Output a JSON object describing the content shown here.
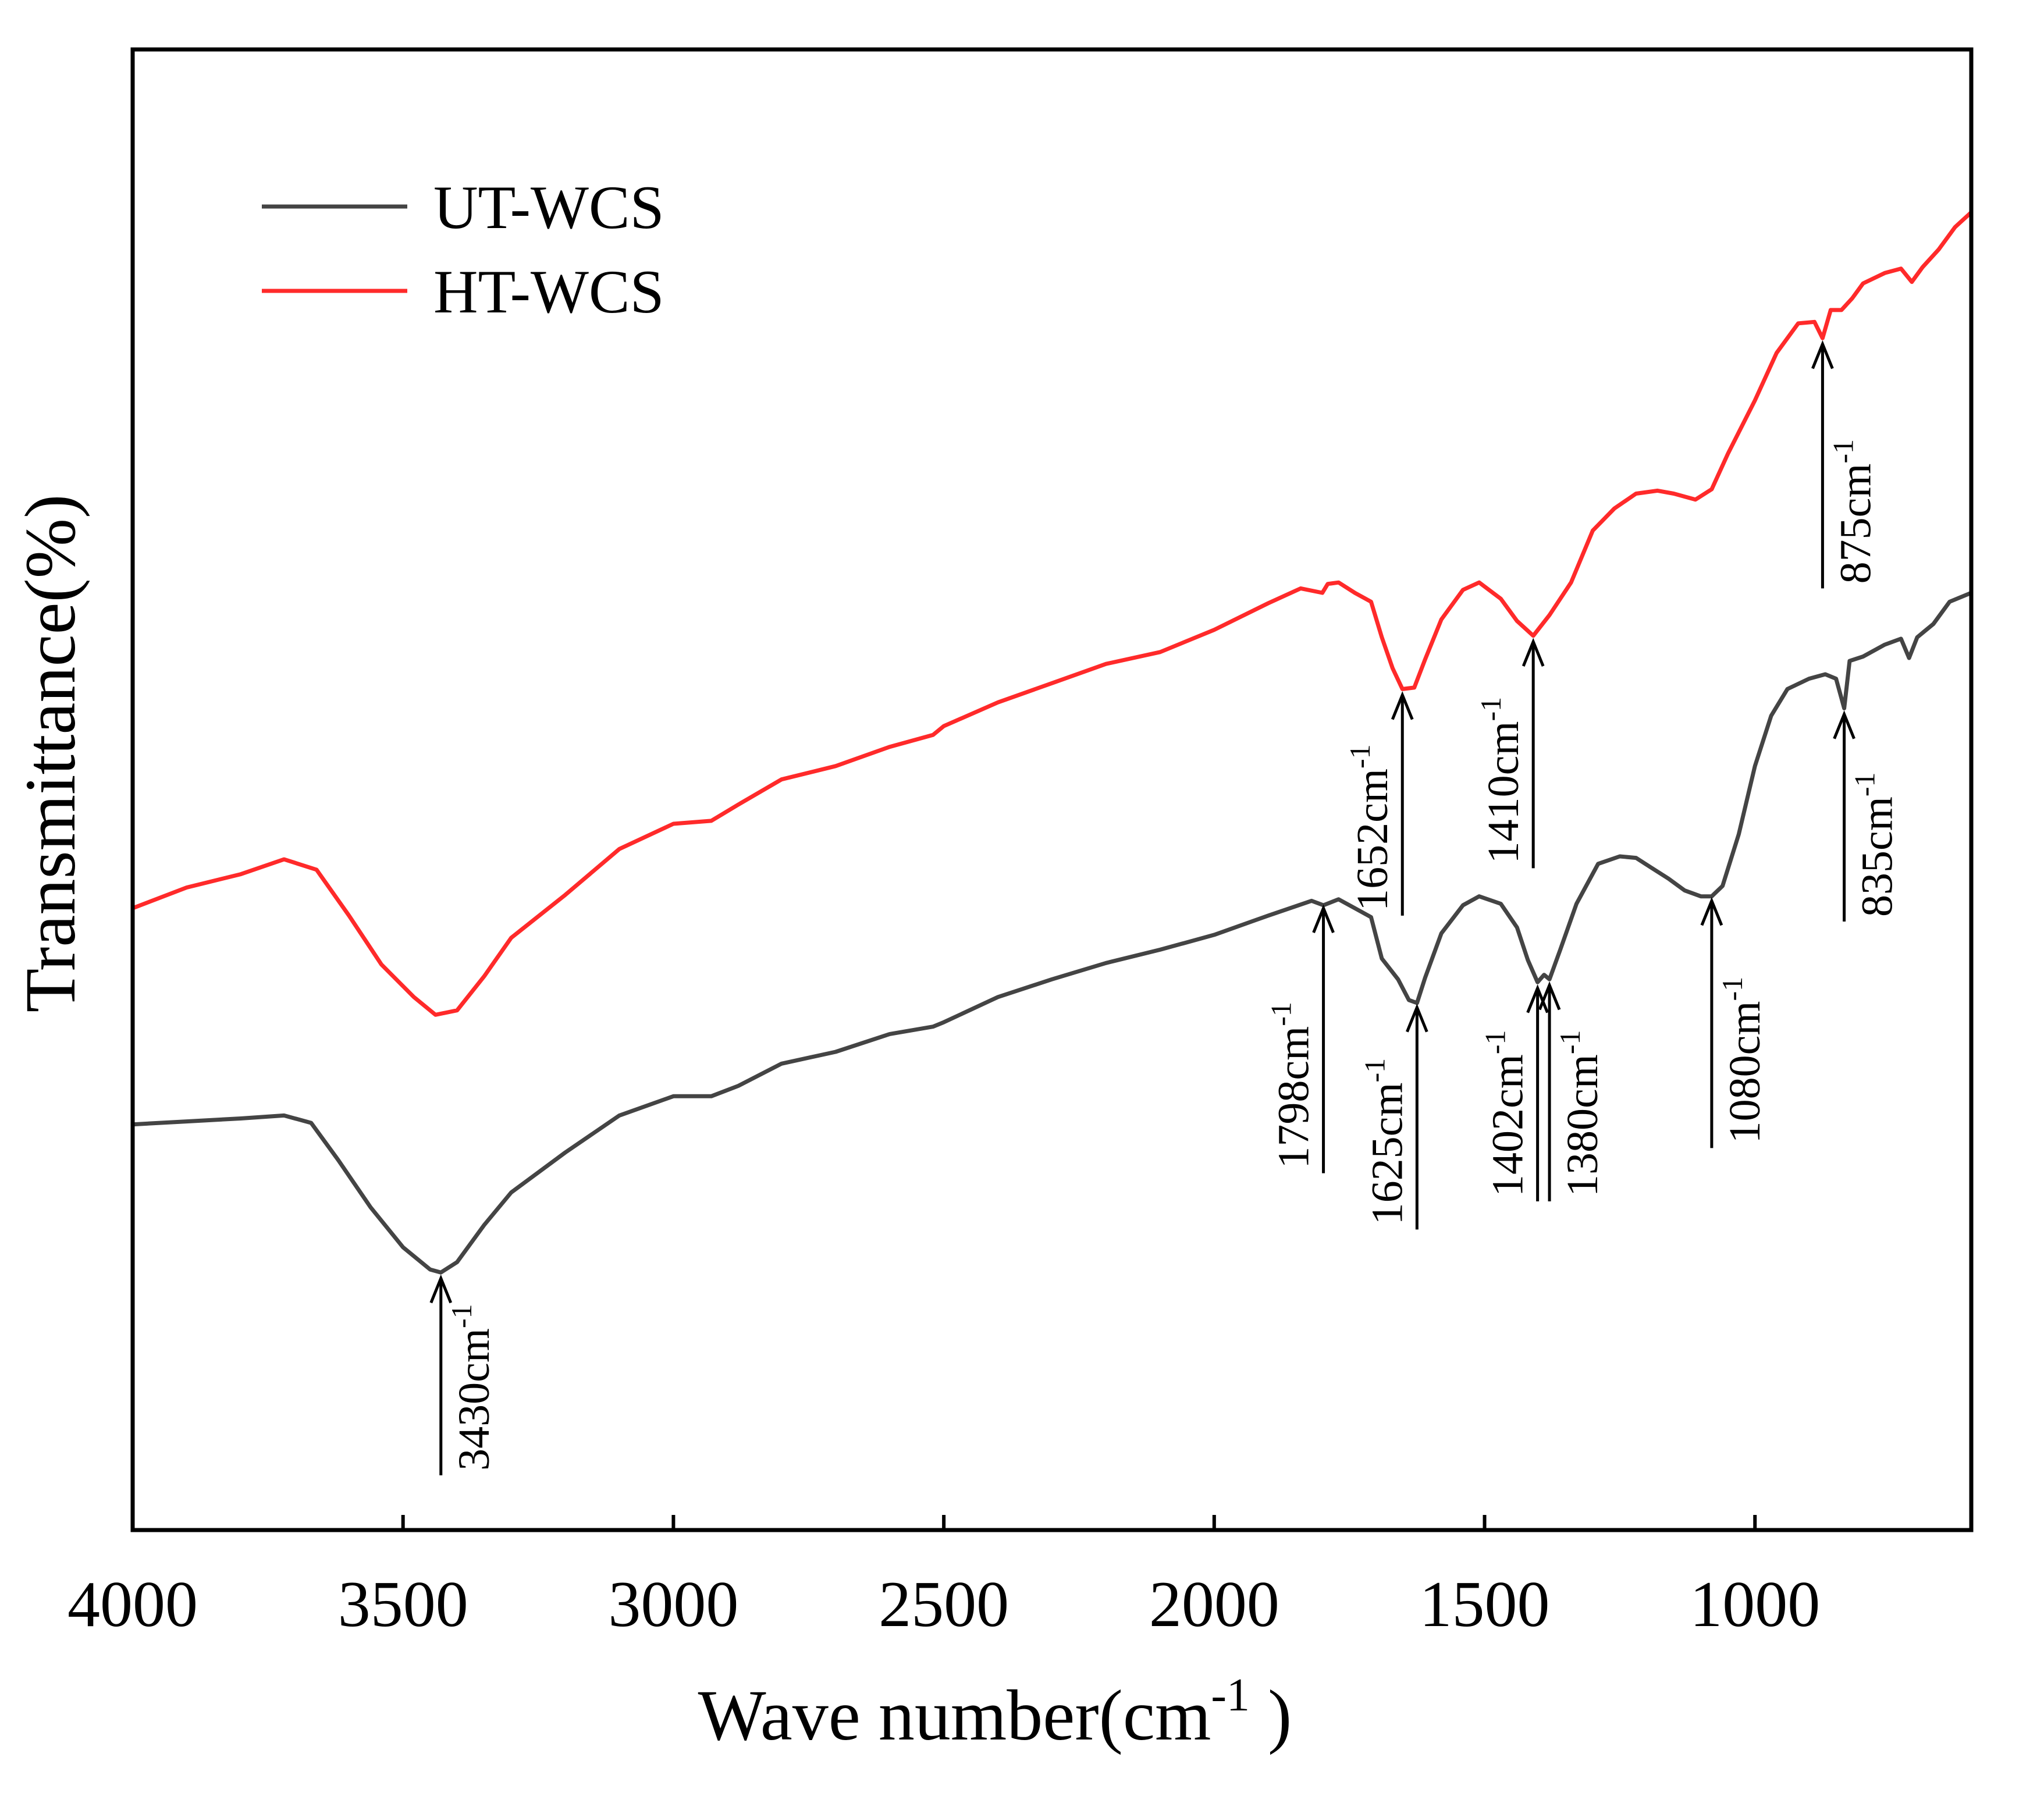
{
  "chart_data": {
    "type": "line",
    "title": "",
    "xlabel": "Wave number(cm",
    "xlabel_sup": "-1",
    "xlabel_close": " )",
    "ylabel": "Transmittance(%)",
    "xlim": [
      4000,
      600
    ],
    "ylim": [
      0,
      100
    ],
    "x_reversed": true,
    "y_ticks_shown": false,
    "xticks": [
      4000,
      3500,
      3000,
      2500,
      2000,
      1500,
      1000
    ],
    "xtick_labels": [
      "4000",
      "3500",
      "3000",
      "2500",
      "2000",
      "1500",
      "1000"
    ],
    "legend": {
      "position": "top-left",
      "entries": [
        "UT-WCS",
        "HT-WCS"
      ]
    },
    "series": [
      {
        "name": "HT-WCS",
        "color": "#ff2a2a",
        "points": [
          [
            4000,
            42.0
          ],
          [
            3900,
            43.4
          ],
          [
            3800,
            44.3
          ],
          [
            3720,
            45.3
          ],
          [
            3660,
            44.6
          ],
          [
            3600,
            41.5
          ],
          [
            3540,
            38.2
          ],
          [
            3480,
            36.0
          ],
          [
            3440,
            34.8
          ],
          [
            3400,
            35.1
          ],
          [
            3350,
            37.4
          ],
          [
            3300,
            40.0
          ],
          [
            3200,
            42.9
          ],
          [
            3100,
            46.0
          ],
          [
            3000,
            47.7
          ],
          [
            2930,
            47.9
          ],
          [
            2880,
            49.0
          ],
          [
            2800,
            50.7
          ],
          [
            2700,
            51.6
          ],
          [
            2600,
            52.9
          ],
          [
            2520,
            53.7
          ],
          [
            2500,
            54.3
          ],
          [
            2400,
            55.9
          ],
          [
            2300,
            57.2
          ],
          [
            2200,
            58.5
          ],
          [
            2100,
            59.3
          ],
          [
            2000,
            60.8
          ],
          [
            1900,
            62.6
          ],
          [
            1840,
            63.6
          ],
          [
            1800,
            63.3
          ],
          [
            1790,
            63.9
          ],
          [
            1770,
            64.0
          ],
          [
            1740,
            63.3
          ],
          [
            1710,
            62.7
          ],
          [
            1690,
            60.3
          ],
          [
            1670,
            58.2
          ],
          [
            1652,
            56.8
          ],
          [
            1630,
            56.9
          ],
          [
            1610,
            58.8
          ],
          [
            1580,
            61.5
          ],
          [
            1540,
            63.5
          ],
          [
            1510,
            64.0
          ],
          [
            1470,
            62.9
          ],
          [
            1440,
            61.4
          ],
          [
            1410,
            60.4
          ],
          [
            1380,
            61.8
          ],
          [
            1340,
            64.0
          ],
          [
            1300,
            67.5
          ],
          [
            1260,
            69.0
          ],
          [
            1220,
            70.0
          ],
          [
            1180,
            70.2
          ],
          [
            1150,
            70.0
          ],
          [
            1110,
            69.6
          ],
          [
            1080,
            70.3
          ],
          [
            1050,
            72.7
          ],
          [
            1000,
            76.3
          ],
          [
            960,
            79.5
          ],
          [
            920,
            81.5
          ],
          [
            890,
            81.6
          ],
          [
            875,
            80.5
          ],
          [
            860,
            82.4
          ],
          [
            840,
            82.4
          ],
          [
            820,
            83.2
          ],
          [
            800,
            84.2
          ],
          [
            760,
            84.9
          ],
          [
            730,
            85.2
          ],
          [
            710,
            84.3
          ],
          [
            690,
            85.3
          ],
          [
            660,
            86.5
          ],
          [
            630,
            88.0
          ],
          [
            600,
            89.0
          ]
        ]
      },
      {
        "name": "UT-WCS",
        "color": "#444444",
        "points": [
          [
            4000,
            27.4
          ],
          [
            3900,
            27.6
          ],
          [
            3800,
            27.8
          ],
          [
            3720,
            28.0
          ],
          [
            3670,
            27.5
          ],
          [
            3620,
            25.0
          ],
          [
            3560,
            21.8
          ],
          [
            3500,
            19.1
          ],
          [
            3450,
            17.6
          ],
          [
            3430,
            17.4
          ],
          [
            3400,
            18.1
          ],
          [
            3350,
            20.6
          ],
          [
            3300,
            22.8
          ],
          [
            3200,
            25.5
          ],
          [
            3100,
            28.0
          ],
          [
            3000,
            29.3
          ],
          [
            2930,
            29.3
          ],
          [
            2880,
            30.0
          ],
          [
            2800,
            31.5
          ],
          [
            2700,
            32.3
          ],
          [
            2600,
            33.5
          ],
          [
            2520,
            34.0
          ],
          [
            2500,
            34.3
          ],
          [
            2400,
            36.0
          ],
          [
            2300,
            37.2
          ],
          [
            2200,
            38.3
          ],
          [
            2100,
            39.2
          ],
          [
            2000,
            40.2
          ],
          [
            1900,
            41.5
          ],
          [
            1820,
            42.5
          ],
          [
            1798,
            42.2
          ],
          [
            1770,
            42.6
          ],
          [
            1740,
            42.0
          ],
          [
            1710,
            41.4
          ],
          [
            1690,
            38.6
          ],
          [
            1660,
            37.2
          ],
          [
            1640,
            35.8
          ],
          [
            1625,
            35.6
          ],
          [
            1610,
            37.3
          ],
          [
            1580,
            40.3
          ],
          [
            1540,
            42.2
          ],
          [
            1510,
            42.8
          ],
          [
            1470,
            42.3
          ],
          [
            1440,
            40.7
          ],
          [
            1420,
            38.5
          ],
          [
            1402,
            37.0
          ],
          [
            1390,
            37.5
          ],
          [
            1380,
            37.2
          ],
          [
            1360,
            39.2
          ],
          [
            1330,
            42.3
          ],
          [
            1290,
            45.0
          ],
          [
            1250,
            45.5
          ],
          [
            1220,
            45.4
          ],
          [
            1190,
            44.7
          ],
          [
            1160,
            44.0
          ],
          [
            1130,
            43.2
          ],
          [
            1100,
            42.8
          ],
          [
            1080,
            42.8
          ],
          [
            1060,
            43.5
          ],
          [
            1030,
            47.0
          ],
          [
            1000,
            51.6
          ],
          [
            970,
            55.0
          ],
          [
            940,
            56.8
          ],
          [
            900,
            57.5
          ],
          [
            870,
            57.8
          ],
          [
            850,
            57.5
          ],
          [
            835,
            55.5
          ],
          [
            825,
            58.7
          ],
          [
            800,
            59.0
          ],
          [
            760,
            59.8
          ],
          [
            730,
            60.2
          ],
          [
            715,
            58.9
          ],
          [
            700,
            60.3
          ],
          [
            670,
            61.2
          ],
          [
            640,
            62.7
          ],
          [
            600,
            63.3
          ]
        ]
      }
    ],
    "annotations": [
      {
        "x": 1652,
        "label": "1652cm",
        "sup": "-1",
        "tip_y": 56.4,
        "tail_y": 41.5,
        "text_side": "left"
      },
      {
        "x": 1410,
        "label": "1410cm",
        "sup": "-1",
        "tip_y": 60.0,
        "tail_y": 44.7,
        "text_side": "left"
      },
      {
        "x": 875,
        "label": "875cm",
        "sup": "-1",
        "tip_y": 80.1,
        "tail_y": 63.6,
        "text_side": "right"
      },
      {
        "x": 835,
        "label": "835cm",
        "sup": "-1",
        "tip_y": 55.1,
        "tail_y": 41.1,
        "text_side": "right"
      },
      {
        "x": 1798,
        "label": "1798cm",
        "sup": "-1",
        "tip_y": 42.0,
        "tail_y": 24.1,
        "text_side": "left"
      },
      {
        "x": 1625,
        "label": "1625cm",
        "sup": "-1",
        "tip_y": 35.3,
        "tail_y": 20.3,
        "text_side": "left"
      },
      {
        "x": 1402,
        "label": "1402cm",
        "sup": "-1",
        "tip_y": 36.6,
        "tail_y": 22.2,
        "text_side": "left"
      },
      {
        "x": 1380,
        "label": "1380cm",
        "sup": "-1",
        "tip_y": 36.8,
        "tail_y": 22.2,
        "text_side": "right"
      },
      {
        "x": 1080,
        "label": "1080cm",
        "sup": "-1",
        "tip_y": 42.5,
        "tail_y": 25.8,
        "text_side": "right"
      },
      {
        "x": 3430,
        "label": "3430cm",
        "sup": "-1",
        "tip_y": 17.0,
        "tail_y": 3.7,
        "text_side": "right"
      }
    ]
  }
}
